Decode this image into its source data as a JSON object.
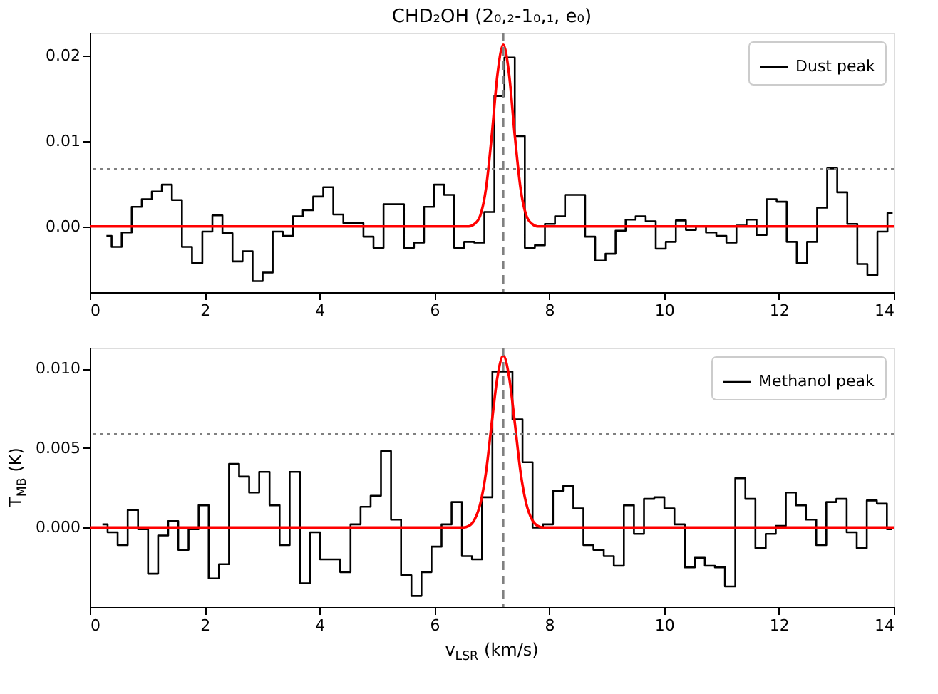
{
  "chart_data": [
    {
      "type": "step",
      "title": "CHD₂OH (2₀,₂-1₀,₁, e₀)",
      "xlim": [
        0,
        14
      ],
      "xticks": [
        0,
        2,
        4,
        6,
        8,
        10,
        12,
        14
      ],
      "ylim": [
        -0.0077,
        0.0227
      ],
      "yticks": [
        {
          "value": 0,
          "label": "0.00"
        },
        {
          "value": 0.01,
          "label": "0.01"
        },
        {
          "value": 0.02,
          "label": "0.02"
        }
      ],
      "grid": false,
      "legend": "top right",
      "series": [
        {
          "name": "Dust peak",
          "color": "#000000",
          "x": [
            0.29,
            0.47,
            0.64,
            0.82,
            0.99,
            1.17,
            1.34,
            1.52,
            1.69,
            1.87,
            2.05,
            2.22,
            2.4,
            2.57,
            2.75,
            2.92,
            3.1,
            3.27,
            3.45,
            3.62,
            3.8,
            3.98,
            4.15,
            4.33,
            4.5,
            4.68,
            4.85,
            5.03,
            5.2,
            5.38,
            5.56,
            5.73,
            5.91,
            6.08,
            6.26,
            6.43,
            6.61,
            6.78,
            6.96,
            7.13,
            7.31,
            7.49,
            7.66,
            7.84,
            8.01,
            8.19,
            8.36,
            8.54,
            8.71,
            8.89,
            9.07,
            9.24,
            9.42,
            9.59,
            9.77,
            9.94,
            10.12,
            10.29,
            10.47,
            10.64,
            10.82,
            11.0,
            11.17,
            11.35,
            11.52,
            11.7,
            11.87,
            12.05,
            12.22,
            12.4,
            12.58,
            12.75,
            12.93,
            13.1,
            13.28,
            13.45,
            13.63,
            13.8,
            13.98
          ],
          "values": [
            -0.0011,
            -0.0024,
            -0.0007,
            0.0023,
            0.0032,
            0.0041,
            0.0049,
            0.0031,
            -0.0024,
            -0.0043,
            -0.0006,
            0.0013,
            -0.0008,
            -0.0041,
            -0.0029,
            -0.0064,
            -0.0054,
            -0.0006,
            -0.0011,
            0.0012,
            0.0019,
            0.0035,
            0.0046,
            0.0014,
            0.0004,
            0.0004,
            -0.0012,
            -0.0025,
            0.0026,
            0.0026,
            -0.0025,
            -0.0019,
            0.0023,
            0.0049,
            0.0037,
            -0.0025,
            -0.0018,
            -0.0019,
            0.0017,
            0.0153,
            0.0198,
            0.0106,
            -0.0025,
            -0.0022,
            0.0003,
            0.0012,
            0.0037,
            0.0037,
            -0.0012,
            -0.004,
            -0.0032,
            -0.0005,
            0.0008,
            0.0012,
            0.0006,
            -0.0026,
            -0.0018,
            0.0007,
            -0.0004,
            0,
            -0.0007,
            -0.0011,
            -0.0019,
            0.0001,
            0.0008,
            -0.001,
            0.0032,
            0.0029,
            -0.0018,
            -0.0043,
            -0.0018,
            0.0022,
            0.0068,
            0.004,
            0.0003,
            -0.0044,
            -0.0057,
            -0.0006,
            0.0016
          ]
        },
        {
          "type": "line",
          "color": "#ff0000",
          "x": [
            0,
            6.6,
            6.7,
            6.8,
            6.9,
            7.0,
            7.1,
            7.2,
            7.3,
            7.4,
            7.5,
            7.6,
            7.7,
            7.8,
            14
          ],
          "values": [
            0,
            0,
            0.0003,
            0.0013,
            0.0045,
            0.0107,
            0.0179,
            0.0213,
            0.0179,
            0.0107,
            0.0045,
            0.0013,
            0.0003,
            0,
            0
          ]
        }
      ],
      "ref_lines": [
        {
          "axis": "x",
          "value": 7.2,
          "color": "#808080",
          "line_style": "dashed"
        },
        {
          "axis": "y",
          "value": 0.0067,
          "color": "#808080",
          "line_style": "dotted"
        }
      ]
    },
    {
      "type": "step",
      "xlabel": "v$_{LSR}$ (km/s)",
      "ylabel": "T$_{MB}$ (K)",
      "xlim": [
        0,
        14
      ],
      "xticks": [
        0,
        2,
        4,
        6,
        8,
        10,
        12,
        14
      ],
      "ylim": [
        -0.005,
        0.0113
      ],
      "yticks": [
        {
          "value": 0,
          "label": "0.000"
        },
        {
          "value": 0.005,
          "label": "0.005"
        },
        {
          "value": 0.01,
          "label": "0.010"
        }
      ],
      "grid": false,
      "legend": "top right",
      "series": [
        {
          "name": "Methanol peak",
          "color": "#000000",
          "x": [
            0.22,
            0.4,
            0.57,
            0.75,
            0.93,
            1.1,
            1.28,
            1.45,
            1.63,
            1.81,
            1.98,
            2.16,
            2.34,
            2.51,
            2.69,
            2.86,
            3.04,
            3.22,
            3.39,
            3.57,
            3.75,
            3.92,
            4.1,
            4.27,
            4.45,
            4.63,
            4.8,
            4.98,
            5.16,
            5.33,
            5.51,
            5.69,
            5.86,
            6.04,
            6.21,
            6.39,
            6.57,
            6.74,
            6.92,
            7.1,
            7.27,
            7.45,
            7.62,
            7.8,
            7.98,
            8.15,
            8.33,
            8.51,
            8.68,
            8.86,
            9.04,
            9.21,
            9.39,
            9.56,
            9.74,
            9.92,
            10.09,
            10.27,
            10.45,
            10.62,
            10.8,
            10.97,
            11.15,
            11.33,
            11.5,
            11.68,
            11.86,
            12.03,
            12.21,
            12.38,
            12.56,
            12.74,
            12.91,
            13.09,
            13.27,
            13.44,
            13.62,
            13.79,
            13.97
          ],
          "values": [
            0.0002,
            -0.0003,
            -0.0011,
            0.0011,
            -0.0001,
            -0.0029,
            -0.0005,
            0.0004,
            -0.0014,
            -0.0001,
            0.0014,
            -0.0032,
            -0.0023,
            0.004,
            0.0032,
            0.0022,
            0.0035,
            0.0014,
            -0.0011,
            0.0035,
            -0.0035,
            -0.0003,
            -0.002,
            -0.002,
            -0.0028,
            0.0002,
            0.0013,
            0.002,
            0.0048,
            0.0005,
            -0.003,
            -0.0043,
            -0.0028,
            -0.0012,
            0.0002,
            0.0016,
            -0.0018,
            -0.002,
            0.0019,
            0.0098,
            0.0098,
            0.0068,
            0.0041,
            0,
            0.0002,
            0.0023,
            0.0026,
            0.0012,
            -0.0011,
            -0.0014,
            -0.0018,
            -0.0024,
            0.0014,
            -0.0004,
            0.0018,
            0.0019,
            0.0012,
            0.0002,
            -0.0025,
            -0.0019,
            -0.0024,
            -0.0025,
            -0.0037,
            0.0031,
            0.0018,
            -0.0013,
            -0.0004,
            0.0001,
            0.0022,
            0.0014,
            0.0005,
            -0.0011,
            0.0016,
            0.0018,
            -0.0003,
            -0.0013,
            0.0017,
            0.0015,
            -0.0001
          ]
        },
        {
          "type": "line",
          "color": "#ff0000",
          "x": [
            0,
            6.5,
            6.6,
            6.7,
            6.8,
            6.9,
            7.0,
            7.1,
            7.2,
            7.3,
            7.4,
            7.5,
            7.6,
            7.7,
            7.8,
            7.9,
            14
          ],
          "values": [
            0,
            0,
            0.0001,
            0.0005,
            0.0015,
            0.0035,
            0.0066,
            0.0095,
            0.0108,
            0.0095,
            0.0066,
            0.0035,
            0.0015,
            0.0005,
            0.0001,
            0,
            0
          ]
        }
      ],
      "ref_lines": [
        {
          "axis": "x",
          "value": 7.2,
          "color": "#808080",
          "line_style": "dashed"
        },
        {
          "axis": "y",
          "value": 0.0059,
          "color": "#808080",
          "line_style": "dotted"
        }
      ]
    }
  ]
}
